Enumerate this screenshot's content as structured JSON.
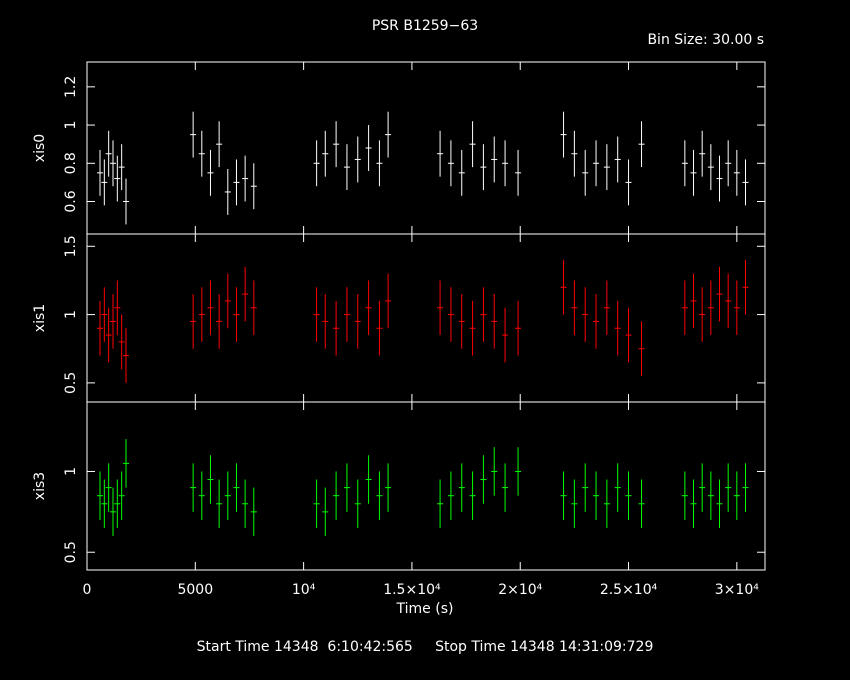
{
  "chart_data": {
    "type": "errorbar",
    "title": "PSR B1259−63",
    "subtitle": "Bin Size: 30.00 s",
    "xlabel": "Time (s)",
    "footer": "Start Time 14348  6:10:42:565     Stop Time 14348 14:31:09:729",
    "xlim": [
      0,
      31300
    ],
    "xticks": [
      0,
      5000,
      {
        "value": 10000,
        "label": "10⁴"
      },
      {
        "value": 15000,
        "label": "1.5×10⁴"
      },
      {
        "value": 20000,
        "label": "2×10⁴"
      },
      {
        "value": 25000,
        "label": "2.5×10⁴"
      },
      {
        "value": 30000,
        "label": "3×10⁴"
      }
    ],
    "x": [
      600,
      800,
      1000,
      1200,
      1400,
      1600,
      1800,
      4900,
      5300,
      5700,
      6100,
      6500,
      6900,
      7300,
      7700,
      10600,
      11000,
      11500,
      12000,
      12500,
      13000,
      13500,
      13900,
      16300,
      16800,
      17300,
      17800,
      18300,
      18800,
      19300,
      19900,
      22000,
      22500,
      23000,
      23500,
      24000,
      24500,
      25000,
      25600,
      27600,
      28000,
      28400,
      28800,
      29200,
      29600,
      30000,
      30400
    ],
    "panels": [
      {
        "ylabel": "xis0",
        "color": "#ffffff",
        "ylim": [
          0.43,
          1.33
        ],
        "yticks": [
          0.6,
          0.8,
          1,
          1.2
        ],
        "error": 0.12,
        "values": [
          0.75,
          0.7,
          0.85,
          0.8,
          0.72,
          0.78,
          0.6,
          0.95,
          0.85,
          0.75,
          0.9,
          0.65,
          0.7,
          0.72,
          0.68,
          0.8,
          0.85,
          0.9,
          0.78,
          0.82,
          0.88,
          0.8,
          0.95,
          0.85,
          0.8,
          0.75,
          0.9,
          0.78,
          0.82,
          0.8,
          0.75,
          0.95,
          0.85,
          0.75,
          0.8,
          0.78,
          0.82,
          0.7,
          0.9,
          0.8,
          0.75,
          0.85,
          0.78,
          0.72,
          0.8,
          0.75,
          0.7
        ]
      },
      {
        "ylabel": "xis1",
        "color": "#ff0000",
        "ylim": [
          0.36,
          1.59
        ],
        "yticks": [
          0.5,
          1,
          1.5
        ],
        "error": 0.2,
        "values": [
          0.9,
          1.0,
          0.85,
          0.95,
          1.05,
          0.8,
          0.7,
          0.95,
          1.0,
          1.05,
          0.95,
          1.1,
          1.0,
          1.15,
          1.05,
          1.0,
          0.95,
          0.9,
          1.0,
          0.95,
          1.05,
          0.9,
          1.1,
          1.05,
          1.0,
          0.95,
          0.9,
          1.0,
          0.95,
          0.85,
          0.9,
          1.2,
          1.05,
          1.0,
          0.95,
          1.05,
          0.9,
          0.85,
          0.75,
          1.05,
          1.1,
          1.0,
          1.05,
          1.15,
          1.1,
          1.05,
          1.2
        ]
      },
      {
        "ylabel": "xis3",
        "color": "#00ff00",
        "ylim": [
          0.39,
          1.43
        ],
        "yticks": [
          0.5,
          1
        ],
        "error": 0.15,
        "values": [
          0.85,
          0.8,
          0.9,
          0.75,
          0.8,
          0.85,
          1.05,
          0.9,
          0.85,
          0.95,
          0.8,
          0.85,
          0.9,
          0.8,
          0.75,
          0.8,
          0.75,
          0.85,
          0.9,
          0.8,
          0.95,
          0.85,
          0.9,
          0.8,
          0.85,
          0.9,
          0.85,
          0.95,
          1.0,
          0.9,
          1.0,
          0.85,
          0.8,
          0.9,
          0.85,
          0.8,
          0.9,
          0.85,
          0.8,
          0.85,
          0.8,
          0.9,
          0.85,
          0.8,
          0.9,
          0.85,
          0.9
        ]
      }
    ]
  }
}
